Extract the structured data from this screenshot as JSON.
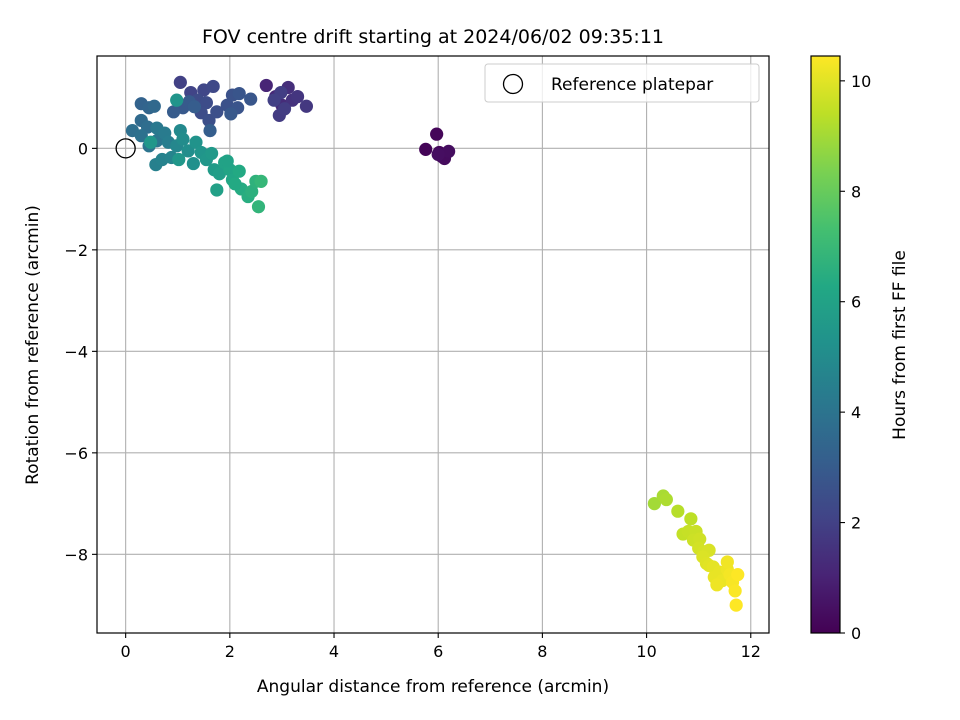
{
  "chart_data": {
    "type": "scatter",
    "title": "FOV centre drift starting at 2024/06/02 09:35:11",
    "xlabel": "Angular distance from reference (arcmin)",
    "ylabel": "Rotation from reference (arcmin)",
    "xlim": [
      -0.55,
      12.35
    ],
    "ylim": [
      -9.55,
      1.82
    ],
    "xticks": [
      0,
      2,
      4,
      6,
      8,
      10,
      12
    ],
    "yticks": [
      0,
      -2,
      -4,
      -6,
      -8
    ],
    "grid": true,
    "legend": {
      "location": "upper right",
      "entries": [
        "Reference platepar"
      ]
    },
    "reference_point": {
      "x": 0,
      "y": 0,
      "marker": "hollow circle"
    },
    "colorbar": {
      "label": "Hours from first FF file",
      "colormap": "viridis",
      "range": [
        0,
        10.45
      ],
      "ticks": [
        0,
        2,
        4,
        6,
        8,
        10
      ]
    },
    "points": [
      {
        "x": 5.76,
        "y": -0.02,
        "c": 0.1
      },
      {
        "x": 5.97,
        "y": 0.28,
        "c": 0.15
      },
      {
        "x": 6.02,
        "y": -0.08,
        "c": 0.2
      },
      {
        "x": 6.07,
        "y": -0.16,
        "c": 0.25
      },
      {
        "x": 6.12,
        "y": -0.2,
        "c": 0.3
      },
      {
        "x": 6.2,
        "y": -0.06,
        "c": 0.35
      },
      {
        "x": 6.0,
        "y": -0.12,
        "c": 0.4
      },
      {
        "x": 2.7,
        "y": 1.24,
        "c": 1.1
      },
      {
        "x": 2.88,
        "y": 1.02,
        "c": 1.2
      },
      {
        "x": 3.0,
        "y": 0.85,
        "c": 1.3
      },
      {
        "x": 3.12,
        "y": 1.2,
        "c": 1.4
      },
      {
        "x": 3.2,
        "y": 0.95,
        "c": 1.5
      },
      {
        "x": 3.3,
        "y": 1.02,
        "c": 1.6
      },
      {
        "x": 3.47,
        "y": 0.83,
        "c": 1.7
      },
      {
        "x": 2.95,
        "y": 0.65,
        "c": 1.8
      },
      {
        "x": 3.05,
        "y": 0.78,
        "c": 1.85
      },
      {
        "x": 2.98,
        "y": 1.1,
        "c": 1.9
      },
      {
        "x": 2.85,
        "y": 0.95,
        "c": 1.95
      },
      {
        "x": 1.05,
        "y": 1.3,
        "c": 2.0
      },
      {
        "x": 1.25,
        "y": 1.1,
        "c": 2.1
      },
      {
        "x": 1.5,
        "y": 1.15,
        "c": 2.2
      },
      {
        "x": 1.68,
        "y": 1.22,
        "c": 2.3
      },
      {
        "x": 1.38,
        "y": 0.95,
        "c": 2.35
      },
      {
        "x": 1.55,
        "y": 0.9,
        "c": 2.4
      },
      {
        "x": 1.45,
        "y": 0.7,
        "c": 2.45
      },
      {
        "x": 1.6,
        "y": 0.55,
        "c": 2.5
      },
      {
        "x": 1.75,
        "y": 0.72,
        "c": 2.55
      },
      {
        "x": 1.95,
        "y": 0.85,
        "c": 2.6
      },
      {
        "x": 2.05,
        "y": 1.05,
        "c": 2.65
      },
      {
        "x": 2.15,
        "y": 0.8,
        "c": 2.7
      },
      {
        "x": 2.18,
        "y": 1.08,
        "c": 2.75
      },
      {
        "x": 2.4,
        "y": 0.97,
        "c": 2.8
      },
      {
        "x": 2.02,
        "y": 0.68,
        "c": 2.85
      },
      {
        "x": 1.1,
        "y": 0.8,
        "c": 2.9
      },
      {
        "x": 1.22,
        "y": 0.92,
        "c": 2.95
      },
      {
        "x": 0.92,
        "y": 0.72,
        "c": 3.0
      },
      {
        "x": 1.32,
        "y": 0.82,
        "c": 3.05
      },
      {
        "x": 1.62,
        "y": 0.35,
        "c": 3.1
      },
      {
        "x": 0.3,
        "y": 0.88,
        "c": 3.3
      },
      {
        "x": 0.45,
        "y": 0.8,
        "c": 3.4
      },
      {
        "x": 0.55,
        "y": 0.83,
        "c": 3.5
      },
      {
        "x": 0.3,
        "y": 0.55,
        "c": 3.6
      },
      {
        "x": 0.42,
        "y": 0.42,
        "c": 3.7
      },
      {
        "x": 0.13,
        "y": 0.35,
        "c": 3.8
      },
      {
        "x": 0.3,
        "y": 0.25,
        "c": 3.9
      },
      {
        "x": 0.45,
        "y": 0.05,
        "c": 4.0
      },
      {
        "x": 0.6,
        "y": 0.15,
        "c": 4.1
      },
      {
        "x": 0.6,
        "y": 0.4,
        "c": 4.2
      },
      {
        "x": 0.75,
        "y": 0.3,
        "c": 4.3
      },
      {
        "x": 0.82,
        "y": 0.12,
        "c": 4.4
      },
      {
        "x": 0.58,
        "y": -0.32,
        "c": 4.5
      },
      {
        "x": 0.7,
        "y": -0.22,
        "c": 4.6
      },
      {
        "x": 0.88,
        "y": -0.18,
        "c": 4.7
      },
      {
        "x": 0.98,
        "y": 0.05,
        "c": 4.8
      },
      {
        "x": 1.05,
        "y": 0.35,
        "c": 4.9
      },
      {
        "x": 1.1,
        "y": 0.18,
        "c": 5.0
      },
      {
        "x": 1.2,
        "y": -0.05,
        "c": 5.1
      },
      {
        "x": 1.3,
        "y": -0.3,
        "c": 5.2
      },
      {
        "x": 1.35,
        "y": 0.12,
        "c": 5.3
      },
      {
        "x": 1.45,
        "y": -0.08,
        "c": 5.4
      },
      {
        "x": 1.55,
        "y": -0.22,
        "c": 5.5
      },
      {
        "x": 1.65,
        "y": -0.1,
        "c": 5.6
      },
      {
        "x": 0.98,
        "y": 0.95,
        "c": 5.4
      },
      {
        "x": 1.02,
        "y": -0.22,
        "c": 5.5
      },
      {
        "x": 0.48,
        "y": 0.12,
        "c": 5.5
      },
      {
        "x": 1.7,
        "y": -0.42,
        "c": 5.7
      },
      {
        "x": 1.8,
        "y": -0.5,
        "c": 5.8
      },
      {
        "x": 1.75,
        "y": -0.82,
        "c": 5.9
      },
      {
        "x": 1.9,
        "y": -0.28,
        "c": 6.0
      },
      {
        "x": 2.0,
        "y": -0.42,
        "c": 6.1
      },
      {
        "x": 2.05,
        "y": -0.62,
        "c": 6.2
      },
      {
        "x": 2.18,
        "y": -0.45,
        "c": 6.3
      },
      {
        "x": 2.22,
        "y": -0.8,
        "c": 6.4
      },
      {
        "x": 2.35,
        "y": -0.95,
        "c": 6.5
      },
      {
        "x": 2.42,
        "y": -0.85,
        "c": 6.6
      },
      {
        "x": 2.5,
        "y": -0.65,
        "c": 6.7
      },
      {
        "x": 2.55,
        "y": -1.15,
        "c": 6.8
      },
      {
        "x": 2.6,
        "y": -0.65,
        "c": 6.9
      },
      {
        "x": 1.95,
        "y": -0.25,
        "c": 6.0
      },
      {
        "x": 2.1,
        "y": -0.7,
        "c": 6.3
      },
      {
        "x": 10.15,
        "y": -7.0,
        "c": 9.0
      },
      {
        "x": 10.32,
        "y": -6.85,
        "c": 9.1
      },
      {
        "x": 10.38,
        "y": -6.92,
        "c": 9.15
      },
      {
        "x": 10.6,
        "y": -7.15,
        "c": 9.3
      },
      {
        "x": 10.85,
        "y": -7.3,
        "c": 9.4
      },
      {
        "x": 10.7,
        "y": -7.6,
        "c": 9.5
      },
      {
        "x": 10.8,
        "y": -7.55,
        "c": 9.55
      },
      {
        "x": 10.95,
        "y": -7.55,
        "c": 9.6
      },
      {
        "x": 10.9,
        "y": -7.72,
        "c": 9.65
      },
      {
        "x": 11.02,
        "y": -7.7,
        "c": 9.7
      },
      {
        "x": 11.0,
        "y": -7.88,
        "c": 9.75
      },
      {
        "x": 11.1,
        "y": -7.95,
        "c": 9.8
      },
      {
        "x": 11.2,
        "y": -7.92,
        "c": 9.85
      },
      {
        "x": 11.08,
        "y": -8.05,
        "c": 9.9
      },
      {
        "x": 11.15,
        "y": -8.18,
        "c": 9.95
      },
      {
        "x": 11.2,
        "y": -8.22,
        "c": 10.0
      },
      {
        "x": 11.28,
        "y": -8.25,
        "c": 10.05
      },
      {
        "x": 11.3,
        "y": -8.45,
        "c": 10.1
      },
      {
        "x": 11.4,
        "y": -8.35,
        "c": 10.1
      },
      {
        "x": 11.45,
        "y": -8.52,
        "c": 10.15
      },
      {
        "x": 11.55,
        "y": -8.3,
        "c": 10.2
      },
      {
        "x": 11.55,
        "y": -8.15,
        "c": 10.25
      },
      {
        "x": 11.6,
        "y": -8.4,
        "c": 10.3
      },
      {
        "x": 11.65,
        "y": -8.55,
        "c": 10.35
      },
      {
        "x": 11.7,
        "y": -8.72,
        "c": 10.4
      },
      {
        "x": 11.75,
        "y": -8.4,
        "c": 10.45
      },
      {
        "x": 11.72,
        "y": -9.0,
        "c": 10.45
      },
      {
        "x": 11.35,
        "y": -8.6,
        "c": 10.2
      }
    ]
  }
}
